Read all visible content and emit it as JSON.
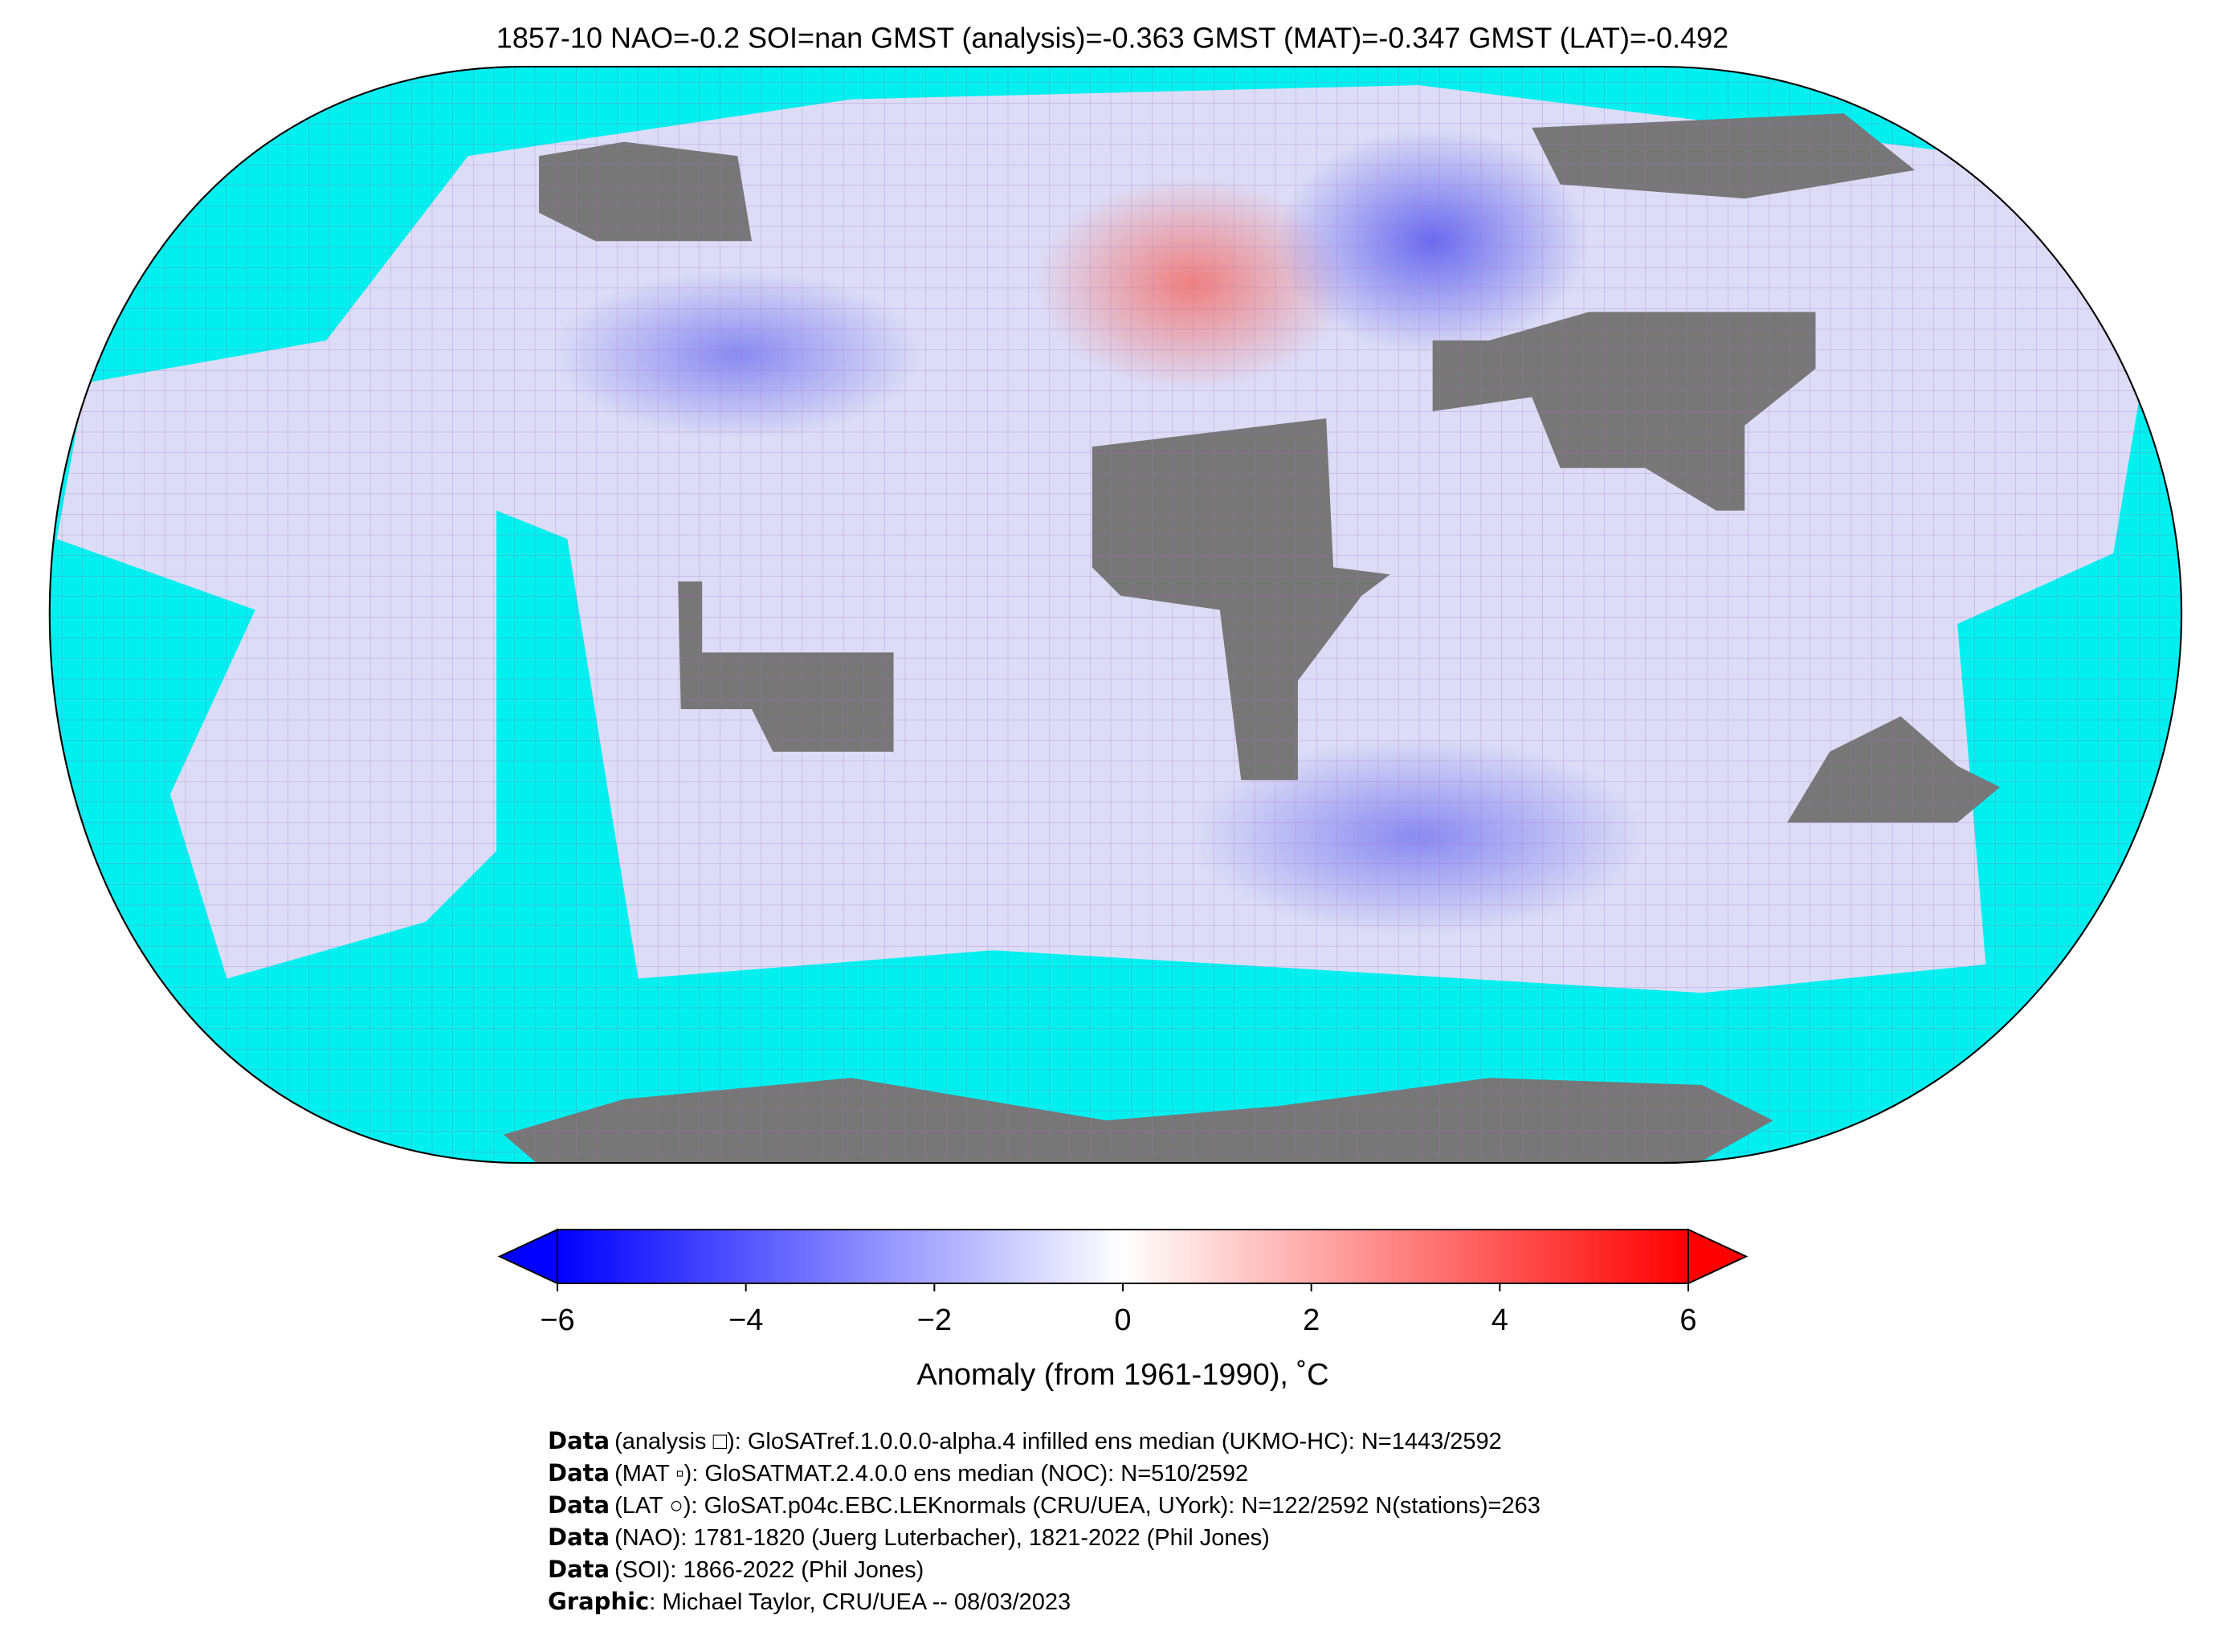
{
  "title": "1857-10 NAO=-0.2 SOI=nan GMST (analysis)=-0.363 GMST (MAT)=-0.347 GMST (LAT)=-0.492",
  "colorbar": {
    "lim": [
      -6,
      6
    ],
    "colors": [
      "#0000ff",
      "#ffffff",
      "#ff0000"
    ],
    "ticks": [
      {
        "value": -6,
        "label": "−6"
      },
      {
        "value": -4,
        "label": "−4"
      },
      {
        "value": -2,
        "label": "−2"
      },
      0,
      2,
      4,
      6
    ],
    "label": "Anomaly (from 1961-1990), ˚C"
  },
  "credits": [
    {
      "label": "Data",
      "text": "(analysis □): GloSATref.1.0.0.0-alpha.4 infilled ens median (UKMO-HC): N=1443/2592"
    },
    {
      "label": "Data",
      "text": "(MAT ▫): GloSATMAT.2.4.0.0 ens median (NOC): N=510/2592"
    },
    {
      "label": "Data",
      "text": "(LAT ○): GloSAT.p04c.EBC.LEKnormals (CRU/UEA, UYork): N=122/2592 N(stations)=263"
    },
    {
      "label": "Data",
      "text": "(NAO): 1781-1820 (Juerg Luterbacher), 1821-2022 (Phil Jones)"
    },
    {
      "label": "Data",
      "text": "(SOI): 1866-2022 (Phil Jones)"
    },
    {
      "label": "Graphic",
      "text": ": Michael Taylor, CRU/UEA -- 08/03/2023"
    }
  ]
}
